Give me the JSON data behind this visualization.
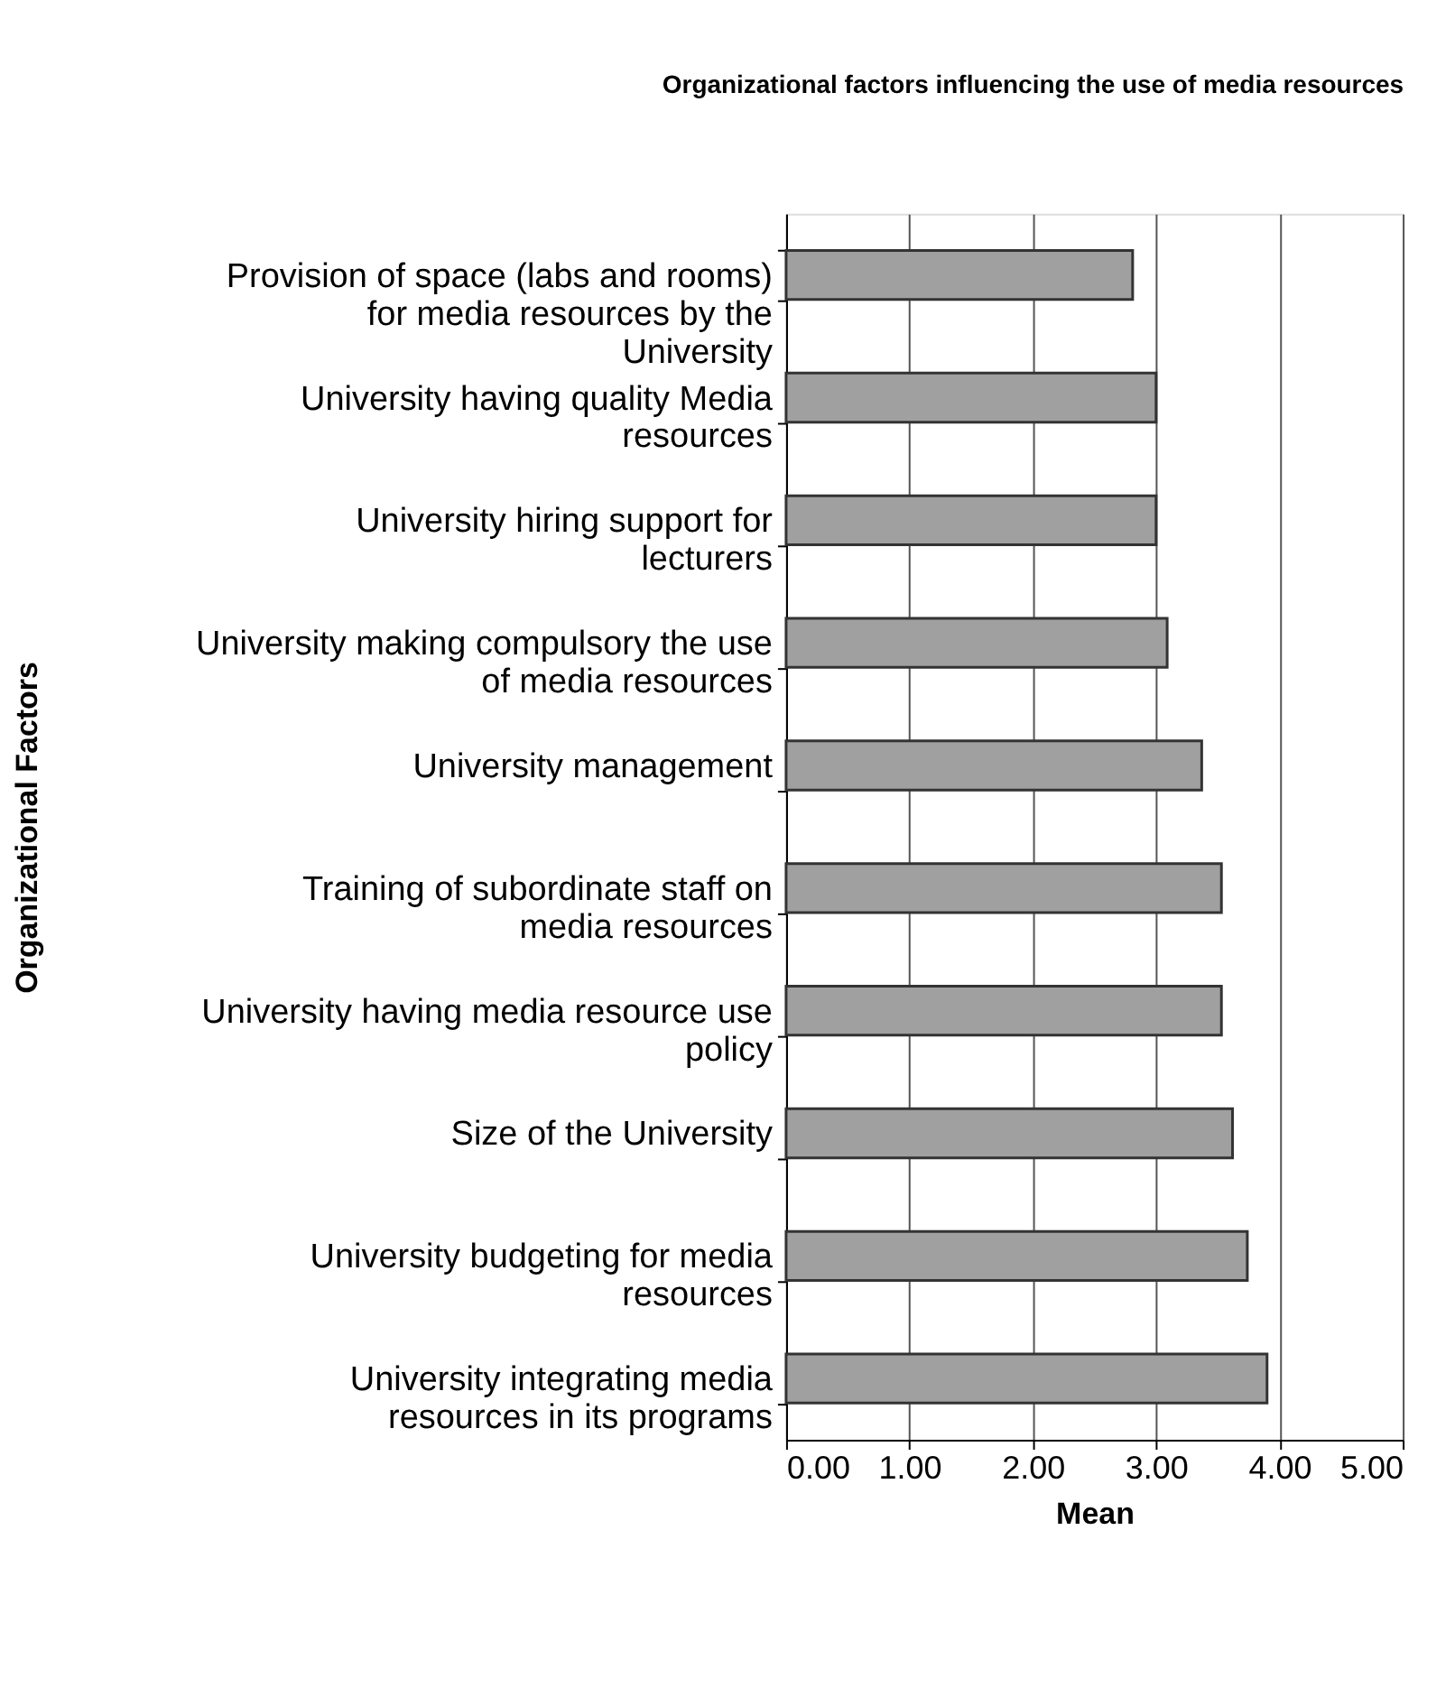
{
  "chart_data": {
    "type": "bar",
    "orientation": "horizontal",
    "title": "Organizational factors influencing the use of media resources",
    "xlabel": "Mean",
    "ylabel": "Organizational Factors",
    "categories": [
      "Provision of space (labs and rooms) for media resources by the University",
      "University having quality Media resources",
      "University hiring support for lecturers",
      "University making compulsory the use of media resources",
      "University management",
      "Training of subordinate staff on media resources",
      "University having media resource use policy",
      "Size of the University",
      "University budgeting for media resources",
      "University integrating media resources in its programs"
    ],
    "values": [
      2.81,
      3.0,
      3.0,
      3.09,
      3.37,
      3.53,
      3.53,
      3.62,
      3.74,
      3.9
    ],
    "color": "#a0a0a0",
    "xlim": [
      0,
      5
    ],
    "xticks": [
      {
        "value": 0,
        "label": "0.00"
      },
      {
        "value": 1,
        "label": "1.00"
      },
      {
        "value": 2,
        "label": "2.00"
      },
      {
        "value": 3,
        "label": "3.00"
      },
      {
        "value": 4,
        "label": "4.00"
      },
      {
        "value": 5,
        "label": "5.00"
      }
    ],
    "grid": "x"
  }
}
